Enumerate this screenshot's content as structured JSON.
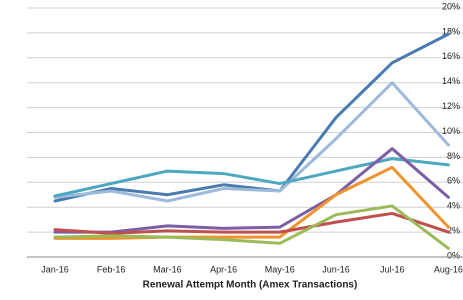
{
  "chart_data": {
    "type": "line",
    "x_label": "Renewal Attempt Month (Amex Transactions)",
    "categories": [
      "Jan-16",
      "Feb-16",
      "Mar-16",
      "Apr-16",
      "May-16",
      "Jun-16",
      "Jul-16",
      "Aug-16"
    ],
    "series": [
      {
        "color": "#4a7bb0",
        "values": [
          4.5,
          5.5,
          5.0,
          5.8,
          5.3,
          11.2,
          15.6,
          17.9
        ]
      },
      {
        "color": "#9db9db",
        "values": [
          4.8,
          5.3,
          4.5,
          5.5,
          5.3,
          9.5,
          14.0,
          9.0
        ]
      },
      {
        "color": "#4ca7c0",
        "values": [
          4.9,
          5.9,
          6.9,
          6.7,
          5.9,
          6.9,
          7.9,
          7.4
        ]
      },
      {
        "color": "#7b5ea6",
        "values": [
          2.0,
          2.0,
          2.5,
          2.3,
          2.4,
          5.0,
          8.7,
          4.8
        ]
      },
      {
        "color": "#f0932c",
        "values": [
          1.5,
          1.5,
          1.6,
          1.6,
          1.6,
          5.0,
          7.2,
          2.4
        ]
      },
      {
        "color": "#c0504d",
        "values": [
          2.2,
          1.9,
          2.1,
          2.0,
          2.0,
          2.8,
          3.5,
          2.0
        ]
      },
      {
        "color": "#9bbb59",
        "values": [
          1.6,
          1.7,
          1.6,
          1.4,
          1.1,
          3.4,
          4.1,
          0.7
        ]
      }
    ],
    "ylim": [
      0,
      20
    ],
    "yticks": [
      {
        "value": 0,
        "label": "0%"
      },
      {
        "value": 2,
        "label": "2%"
      },
      {
        "value": 4,
        "label": "4%"
      },
      {
        "value": 6,
        "label": "6%"
      },
      {
        "value": 8,
        "label": "8%"
      },
      {
        "value": 10,
        "label": "10%"
      },
      {
        "value": 12,
        "label": "12%"
      },
      {
        "value": 14,
        "label": "14%"
      },
      {
        "value": 16,
        "label": "16%"
      },
      {
        "value": 18,
        "label": "18%"
      },
      {
        "value": 20,
        "label": "20%"
      }
    ],
    "grid": true
  }
}
